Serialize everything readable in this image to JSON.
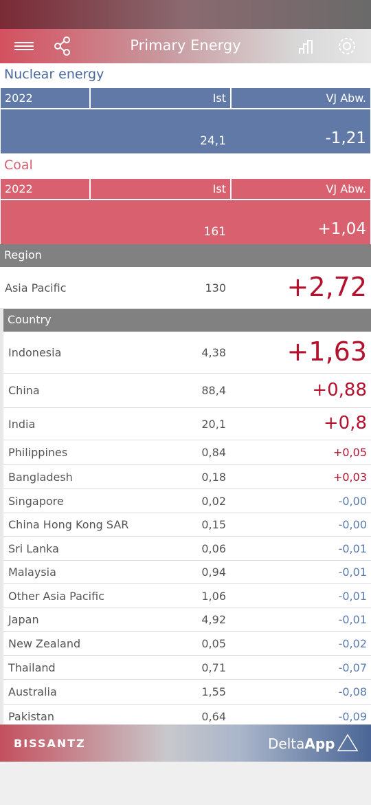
{
  "header": {
    "title": "Primary Energy"
  },
  "kpis": [
    {
      "title": "Nuclear energy",
      "year": "2022",
      "col_ist": "Ist",
      "col_delta": "VJ Abw.",
      "ist": "24,1",
      "delta": "-1,21"
    },
    {
      "title": "Coal",
      "year": "2022",
      "col_ist": "Ist",
      "col_delta": "VJ Abw.",
      "ist": "161",
      "delta": "+1,04"
    }
  ],
  "region": {
    "label": "Region",
    "name": "Asia Pacific",
    "ist": "130",
    "delta": "+2,72"
  },
  "country": {
    "label": "Country",
    "rows": [
      [
        "Indonesia",
        "4,38",
        "+1,63"
      ],
      [
        "China",
        "88,4",
        "+0,88"
      ],
      [
        "India",
        "20,1",
        "+0,8"
      ],
      [
        "Philippines",
        "0,84",
        "+0,05"
      ],
      [
        "Bangladesh",
        "0,18",
        "+0,03"
      ],
      [
        "Singapore",
        "0,02",
        "-0,00"
      ],
      [
        "China Hong Kong SAR",
        "0,15",
        "-0,00"
      ],
      [
        "Sri Lanka",
        "0,06",
        "-0,01"
      ],
      [
        "Malaysia",
        "0,94",
        "-0,01"
      ],
      [
        "Other Asia Pacific",
        "1,06",
        "-0,01"
      ],
      [
        "Japan",
        "4,92",
        "-0,01"
      ],
      [
        "New Zealand",
        "0,05",
        "-0,02"
      ],
      [
        "Thailand",
        "0,71",
        "-0,07"
      ],
      [
        "Australia",
        "1,55",
        "-0,08"
      ],
      [
        "Pakistan",
        "0,64",
        "-0,09"
      ]
    ]
  },
  "footer": {
    "brand": "BISSANTZ",
    "app_light": "Delta",
    "app_bold": "App"
  }
}
